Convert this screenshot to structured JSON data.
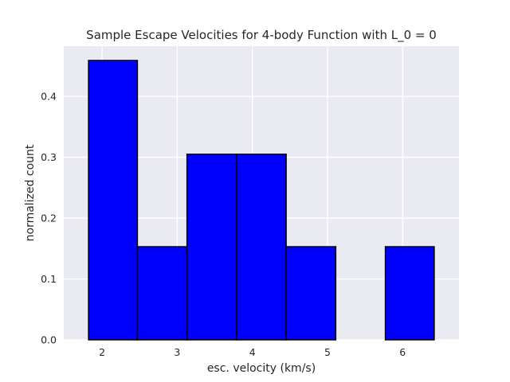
{
  "chart_data": {
    "type": "bar",
    "title": "Sample Escape Velocities for 4-body Function with L_0 = 0",
    "xlabel": "esc. velocity (km/s)",
    "ylabel": "normalized count",
    "bins": [
      {
        "x0": 1.82,
        "x1": 2.47,
        "value": 0.459
      },
      {
        "x0": 2.47,
        "x1": 3.13,
        "value": 0.153
      },
      {
        "x0": 3.13,
        "x1": 3.79,
        "value": 0.305
      },
      {
        "x0": 3.79,
        "x1": 4.45,
        "value": 0.305
      },
      {
        "x0": 4.45,
        "x1": 5.11,
        "value": 0.153
      },
      {
        "x0": 5.11,
        "x1": 5.77,
        "value": 0.0
      },
      {
        "x0": 5.77,
        "x1": 6.42,
        "value": 0.153
      }
    ],
    "xlim": [
      1.49,
      6.75
    ],
    "ylim": [
      0.0,
      0.4825
    ],
    "xticks": [
      2,
      3,
      4,
      5,
      6
    ],
    "yticks": [
      0.0,
      0.1,
      0.2,
      0.3,
      0.4
    ],
    "xtick_labels": [
      "2",
      "3",
      "4",
      "5",
      "6"
    ],
    "ytick_labels": [
      "0.0",
      "0.1",
      "0.2",
      "0.3",
      "0.4"
    ],
    "grid": true,
    "colors": {
      "bar_fill": "#0000ff",
      "bar_edge": "#000000",
      "plot_background": "#eaeaf2",
      "grid": "#ffffff"
    }
  }
}
